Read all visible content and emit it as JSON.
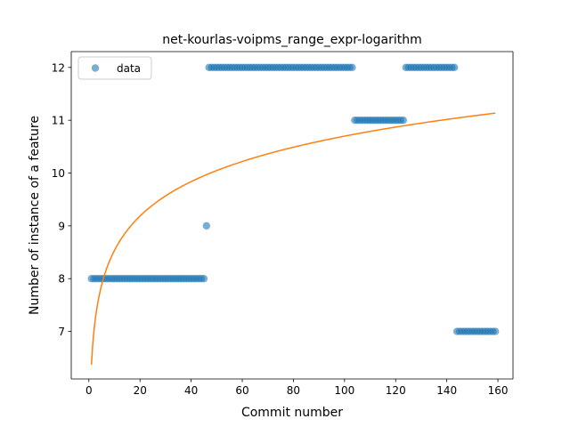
{
  "chart_data": {
    "type": "scatter",
    "title": "net-kourlas-voipms_range_expr-logarithm",
    "xlabel": "Commit number",
    "ylabel": "Number of instance of a feature",
    "xlim": [
      -6.9,
      165.9
    ],
    "ylim": [
      6.1,
      12.3
    ],
    "xticks": [
      0,
      20,
      40,
      60,
      80,
      100,
      120,
      140,
      160
    ],
    "yticks": [
      7,
      8,
      9,
      10,
      11,
      12
    ],
    "legend": {
      "position": "top-left",
      "entries": [
        "data"
      ]
    },
    "colors": {
      "data": "#1f77b4",
      "fit": "#ff7f0e"
    },
    "series": [
      {
        "name": "data",
        "kind": "scatter",
        "segments": [
          {
            "x_start": 1,
            "x_end": 45,
            "y": 8
          },
          {
            "x_start": 46,
            "x_end": 46,
            "y": 9
          },
          {
            "x_start": 47,
            "x_end": 103,
            "y": 12
          },
          {
            "x_start": 104,
            "x_end": 123,
            "y": 11
          },
          {
            "x_start": 124,
            "x_end": 143,
            "y": 12
          },
          {
            "x_start": 144,
            "x_end": 159,
            "y": 7
          }
        ]
      },
      {
        "kind": "line",
        "model": "logarithmic",
        "a": 6.37,
        "b": 0.94,
        "x_start": 1,
        "x_end": 159
      }
    ]
  }
}
